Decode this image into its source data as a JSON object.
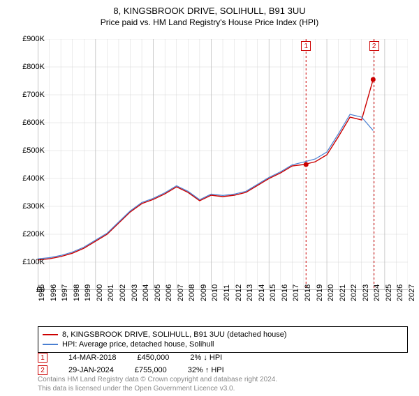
{
  "title": "8, KINGSBROOK DRIVE, SOLIHULL, B91 3UU",
  "subtitle": "Price paid vs. HM Land Registry's House Price Index (HPI)",
  "chart": {
    "type": "line",
    "background_color": "#ffffff",
    "grid_color": "#d8d8d8",
    "grid_color_major": "#c0c0c0",
    "axis_color": "#888888",
    "xlim": [
      1995,
      2027
    ],
    "ylim": [
      0,
      900000
    ],
    "ytick_step": 100000,
    "ytick_labels": [
      "£0",
      "£100K",
      "£200K",
      "£300K",
      "£400K",
      "£500K",
      "£600K",
      "£700K",
      "£800K",
      "£900K"
    ],
    "x_years": [
      1995,
      1996,
      1997,
      1998,
      1999,
      2000,
      2001,
      2002,
      2003,
      2004,
      2005,
      2006,
      2007,
      2008,
      2009,
      2010,
      2011,
      2012,
      2013,
      2014,
      2015,
      2016,
      2017,
      2018,
      2019,
      2020,
      2021,
      2022,
      2023,
      2024,
      2025,
      2026,
      2027
    ],
    "series": [
      {
        "name": "price_paid",
        "label": "8, KINGSBROOK DRIVE, SOLIHULL, B91 3UU (detached house)",
        "color": "#cc0000",
        "line_width": 1.4,
        "points": [
          [
            1995,
            108000
          ],
          [
            1996,
            112000
          ],
          [
            1997,
            120000
          ],
          [
            1998,
            132000
          ],
          [
            1999,
            150000
          ],
          [
            2000,
            175000
          ],
          [
            2001,
            200000
          ],
          [
            2002,
            240000
          ],
          [
            2003,
            280000
          ],
          [
            2004,
            310000
          ],
          [
            2005,
            325000
          ],
          [
            2006,
            345000
          ],
          [
            2007,
            370000
          ],
          [
            2008,
            350000
          ],
          [
            2009,
            320000
          ],
          [
            2010,
            340000
          ],
          [
            2011,
            335000
          ],
          [
            2012,
            340000
          ],
          [
            2013,
            350000
          ],
          [
            2014,
            375000
          ],
          [
            2015,
            400000
          ],
          [
            2016,
            420000
          ],
          [
            2017,
            445000
          ],
          [
            2018,
            450000
          ],
          [
            2019,
            460000
          ],
          [
            2020,
            485000
          ],
          [
            2021,
            550000
          ],
          [
            2022,
            620000
          ],
          [
            2023,
            610000
          ],
          [
            2024,
            755000
          ]
        ]
      },
      {
        "name": "hpi",
        "label": "HPI: Average price, detached house, Solihull",
        "color": "#4a7fd1",
        "line_width": 1.2,
        "points": [
          [
            1995,
            112000
          ],
          [
            1996,
            116000
          ],
          [
            1997,
            124000
          ],
          [
            1998,
            136000
          ],
          [
            1999,
            154000
          ],
          [
            2000,
            179000
          ],
          [
            2001,
            204000
          ],
          [
            2002,
            244000
          ],
          [
            2003,
            284000
          ],
          [
            2004,
            314000
          ],
          [
            2005,
            329000
          ],
          [
            2006,
            349000
          ],
          [
            2007,
            374000
          ],
          [
            2008,
            354000
          ],
          [
            2009,
            324000
          ],
          [
            2010,
            344000
          ],
          [
            2011,
            339000
          ],
          [
            2012,
            344000
          ],
          [
            2013,
            354000
          ],
          [
            2014,
            379000
          ],
          [
            2015,
            404000
          ],
          [
            2016,
            424000
          ],
          [
            2017,
            449000
          ],
          [
            2018,
            459000
          ],
          [
            2019,
            470000
          ],
          [
            2020,
            495000
          ],
          [
            2021,
            560000
          ],
          [
            2022,
            630000
          ],
          [
            2023,
            620000
          ],
          [
            2024,
            572000
          ]
        ]
      }
    ],
    "markers": [
      {
        "id": "1",
        "date": "14-MAR-2018",
        "x": 2018.2,
        "price": "£450,000",
        "delta": "2% ↓ HPI",
        "color": "#cc0000"
      },
      {
        "id": "2",
        "date": "29-JAN-2024",
        "x": 2024.08,
        "price": "£755,000",
        "delta": "32% ↑ HPI",
        "color": "#cc0000"
      }
    ],
    "label_fontsize": 11
  },
  "footer_line1": "Contains HM Land Registry data © Crown copyright and database right 2024.",
  "footer_line2": "This data is licensed under the Open Government Licence v3.0."
}
